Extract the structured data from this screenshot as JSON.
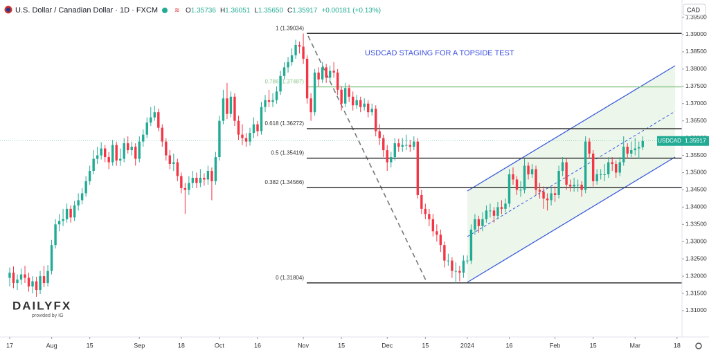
{
  "header": {
    "title": "U.S. Dollar / Canadian Dollar · 1D · FXCM",
    "ohlc": [
      {
        "key": "O",
        "value": "1.35736"
      },
      {
        "key": "H",
        "value": "1.36051"
      },
      {
        "key": "L",
        "value": "1.35650"
      },
      {
        "key": "C",
        "value": "1.35917"
      }
    ],
    "change": "+0.00181 (+0.13%)",
    "currency": "CAD"
  },
  "logo": {
    "brand": "DAILYFX",
    "sub": "provided by IG"
  },
  "chart_data": {
    "type": "candlestick",
    "up_color": "#22ab94",
    "down_color": "#f23645",
    "candles": [
      [
        1.3195,
        1.3225,
        1.317,
        1.321
      ],
      [
        1.321,
        1.3228,
        1.3165,
        1.318
      ],
      [
        1.318,
        1.3205,
        1.316,
        1.319
      ],
      [
        1.319,
        1.3222,
        1.3175,
        1.3205
      ],
      [
        1.3205,
        1.323,
        1.318,
        1.3195
      ],
      [
        1.3195,
        1.321,
        1.3155,
        1.317
      ],
      [
        1.317,
        1.32,
        1.315,
        1.3185
      ],
      [
        1.3185,
        1.3198,
        1.314,
        1.316
      ],
      [
        1.316,
        1.3215,
        1.3148,
        1.32
      ],
      [
        1.32,
        1.323,
        1.3168,
        1.318
      ],
      [
        1.318,
        1.3232,
        1.317,
        1.3215
      ],
      [
        1.3215,
        1.3305,
        1.3205,
        1.329
      ],
      [
        1.329,
        1.3365,
        1.328,
        1.335
      ],
      [
        1.335,
        1.338,
        1.333,
        1.336
      ],
      [
        1.336,
        1.3395,
        1.3345,
        1.3365
      ],
      [
        1.3365,
        1.341,
        1.3355,
        1.3395
      ],
      [
        1.3395,
        1.3405,
        1.3355,
        1.337
      ],
      [
        1.337,
        1.3418,
        1.336,
        1.3405
      ],
      [
        1.3405,
        1.344,
        1.339,
        1.342
      ],
      [
        1.342,
        1.3455,
        1.3408,
        1.344
      ],
      [
        1.344,
        1.349,
        1.343,
        1.3475
      ],
      [
        1.3475,
        1.352,
        1.3465,
        1.3505
      ],
      [
        1.3505,
        1.3565,
        1.3495,
        1.354
      ],
      [
        1.354,
        1.3575,
        1.3525,
        1.355
      ],
      [
        1.355,
        1.3588,
        1.3538,
        1.357
      ],
      [
        1.357,
        1.358,
        1.353,
        1.3545
      ],
      [
        1.3545,
        1.356,
        1.351,
        1.353
      ],
      [
        1.353,
        1.3595,
        1.352,
        1.358
      ],
      [
        1.358,
        1.359,
        1.352,
        1.3535
      ],
      [
        1.3535,
        1.357,
        1.352,
        1.354
      ],
      [
        1.354,
        1.36,
        1.353,
        1.3585
      ],
      [
        1.3585,
        1.3605,
        1.3555,
        1.3565
      ],
      [
        1.3565,
        1.359,
        1.355,
        1.3575
      ],
      [
        1.3575,
        1.3585,
        1.352,
        1.354
      ],
      [
        1.354,
        1.3605,
        1.353,
        1.359
      ],
      [
        1.359,
        1.3625,
        1.3575,
        1.361
      ],
      [
        1.361,
        1.366,
        1.36,
        1.3645
      ],
      [
        1.3645,
        1.369,
        1.3635,
        1.366
      ],
      [
        1.366,
        1.3694,
        1.365,
        1.3675
      ],
      [
        1.3675,
        1.3685,
        1.362,
        1.363
      ],
      [
        1.363,
        1.364,
        1.3575,
        1.359
      ],
      [
        1.359,
        1.36,
        1.3535,
        1.355
      ],
      [
        1.355,
        1.3565,
        1.351,
        1.3525
      ],
      [
        1.3525,
        1.3555,
        1.3505,
        1.353
      ],
      [
        1.353,
        1.354,
        1.3475,
        1.349
      ],
      [
        1.349,
        1.35,
        1.344,
        1.3455
      ],
      [
        1.3455,
        1.347,
        1.338,
        1.345
      ],
      [
        1.345,
        1.349,
        1.3435,
        1.347
      ],
      [
        1.347,
        1.3505,
        1.3455,
        1.3485
      ],
      [
        1.3485,
        1.35,
        1.3455,
        1.347
      ],
      [
        1.347,
        1.351,
        1.3458,
        1.3485
      ],
      [
        1.3485,
        1.3498,
        1.3462,
        1.348
      ],
      [
        1.348,
        1.352,
        1.3465,
        1.3505
      ],
      [
        1.3505,
        1.3515,
        1.342,
        1.3475
      ],
      [
        1.3475,
        1.356,
        1.3465,
        1.3545
      ],
      [
        1.3545,
        1.3665,
        1.3535,
        1.365
      ],
      [
        1.365,
        1.374,
        1.364,
        1.3715
      ],
      [
        1.3715,
        1.376,
        1.3655,
        1.367
      ],
      [
        1.367,
        1.3735,
        1.366,
        1.372
      ],
      [
        1.372,
        1.373,
        1.3635,
        1.365
      ],
      [
        1.365,
        1.3665,
        1.3595,
        1.361
      ],
      [
        1.361,
        1.364,
        1.358,
        1.36
      ],
      [
        1.36,
        1.3615,
        1.3575,
        1.359
      ],
      [
        1.359,
        1.363,
        1.3578,
        1.3615
      ],
      [
        1.3615,
        1.366,
        1.36,
        1.364
      ],
      [
        1.364,
        1.365,
        1.3605,
        1.362
      ],
      [
        1.362,
        1.3705,
        1.361,
        1.369
      ],
      [
        1.369,
        1.3725,
        1.3675,
        1.371
      ],
      [
        1.371,
        1.374,
        1.369,
        1.3705
      ],
      [
        1.3705,
        1.373,
        1.369,
        1.371
      ],
      [
        1.371,
        1.375,
        1.37,
        1.3735
      ],
      [
        1.3735,
        1.3795,
        1.3725,
        1.378
      ],
      [
        1.378,
        1.382,
        1.377,
        1.3805
      ],
      [
        1.3805,
        1.3835,
        1.379,
        1.382
      ],
      [
        1.382,
        1.386,
        1.381,
        1.384
      ],
      [
        1.384,
        1.3885,
        1.383,
        1.387
      ],
      [
        1.387,
        1.388,
        1.3845,
        1.3865
      ],
      [
        1.3865,
        1.3903,
        1.3815,
        1.383
      ],
      [
        1.383,
        1.384,
        1.37,
        1.3715
      ],
      [
        1.3715,
        1.373,
        1.365,
        1.3675
      ],
      [
        1.3675,
        1.38,
        1.3665,
        1.379
      ],
      [
        1.379,
        1.3805,
        1.375,
        1.377
      ],
      [
        1.377,
        1.382,
        1.376,
        1.3805
      ],
      [
        1.3805,
        1.3815,
        1.376,
        1.3775
      ],
      [
        1.3775,
        1.381,
        1.3765,
        1.3795
      ],
      [
        1.3795,
        1.382,
        1.3775,
        1.379
      ],
      [
        1.379,
        1.38,
        1.3725,
        1.374
      ],
      [
        1.374,
        1.375,
        1.368,
        1.37
      ],
      [
        1.37,
        1.376,
        1.369,
        1.3745
      ],
      [
        1.3745,
        1.3755,
        1.3705,
        1.372
      ],
      [
        1.372,
        1.3735,
        1.368,
        1.3695
      ],
      [
        1.3695,
        1.3725,
        1.3685,
        1.371
      ],
      [
        1.371,
        1.372,
        1.3675,
        1.369
      ],
      [
        1.369,
        1.3715,
        1.368,
        1.37
      ],
      [
        1.37,
        1.371,
        1.366,
        1.3675
      ],
      [
        1.3675,
        1.37,
        1.3665,
        1.3685
      ],
      [
        1.3685,
        1.3695,
        1.3605,
        1.362
      ],
      [
        1.362,
        1.364,
        1.358,
        1.36
      ],
      [
        1.36,
        1.361,
        1.3545,
        1.3565
      ],
      [
        1.3565,
        1.358,
        1.3505,
        1.353
      ],
      [
        1.353,
        1.356,
        1.3515,
        1.3545
      ],
      [
        1.3545,
        1.36,
        1.3535,
        1.3585
      ],
      [
        1.3585,
        1.3598,
        1.356,
        1.3575
      ],
      [
        1.3575,
        1.36,
        1.356,
        1.358
      ],
      [
        1.358,
        1.361,
        1.3565,
        1.358
      ],
      [
        1.358,
        1.3595,
        1.356,
        1.3575
      ],
      [
        1.3575,
        1.3605,
        1.3565,
        1.359
      ],
      [
        1.359,
        1.36,
        1.3425,
        1.3435
      ],
      [
        1.3435,
        1.345,
        1.338,
        1.3395
      ],
      [
        1.3395,
        1.341,
        1.3365,
        1.338
      ],
      [
        1.338,
        1.3395,
        1.3345,
        1.3365
      ],
      [
        1.3365,
        1.338,
        1.3315,
        1.333
      ],
      [
        1.333,
        1.335,
        1.33,
        1.332
      ],
      [
        1.332,
        1.3335,
        1.327,
        1.329
      ],
      [
        1.329,
        1.33,
        1.3225,
        1.3245
      ],
      [
        1.3245,
        1.3265,
        1.323,
        1.3245
      ],
      [
        1.3245,
        1.3255,
        1.3195,
        1.3215
      ],
      [
        1.3215,
        1.324,
        1.318,
        1.3215
      ],
      [
        1.3215,
        1.323,
        1.3185,
        1.321
      ],
      [
        1.321,
        1.326,
        1.3195,
        1.3245
      ],
      [
        1.3245,
        1.326,
        1.3235,
        1.3245
      ],
      [
        1.3245,
        1.335,
        1.3235,
        1.3335
      ],
      [
        1.3335,
        1.338,
        1.332,
        1.3365
      ],
      [
        1.3365,
        1.3375,
        1.3325,
        1.3345
      ],
      [
        1.3345,
        1.3385,
        1.333,
        1.3365
      ],
      [
        1.3365,
        1.3405,
        1.3355,
        1.339
      ],
      [
        1.339,
        1.341,
        1.337,
        1.339
      ],
      [
        1.339,
        1.34,
        1.3355,
        1.3375
      ],
      [
        1.3375,
        1.3415,
        1.3365,
        1.34
      ],
      [
        1.34,
        1.342,
        1.338,
        1.3395
      ],
      [
        1.3395,
        1.3425,
        1.3385,
        1.341
      ],
      [
        1.341,
        1.351,
        1.34,
        1.3495
      ],
      [
        1.3495,
        1.3515,
        1.3465,
        1.348
      ],
      [
        1.348,
        1.349,
        1.3435,
        1.345
      ],
      [
        1.345,
        1.3475,
        1.343,
        1.345
      ],
      [
        1.345,
        1.354,
        1.344,
        1.352
      ],
      [
        1.352,
        1.353,
        1.348,
        1.3495
      ],
      [
        1.3495,
        1.3525,
        1.3485,
        1.351
      ],
      [
        1.351,
        1.352,
        1.3435,
        1.345
      ],
      [
        1.345,
        1.347,
        1.3425,
        1.3445
      ],
      [
        1.3445,
        1.346,
        1.3395,
        1.3425
      ],
      [
        1.3425,
        1.344,
        1.339,
        1.342
      ],
      [
        1.342,
        1.3455,
        1.3405,
        1.344
      ],
      [
        1.344,
        1.346,
        1.3415,
        1.3435
      ],
      [
        1.3435,
        1.352,
        1.3425,
        1.3505
      ],
      [
        1.3505,
        1.3545,
        1.349,
        1.353
      ],
      [
        1.353,
        1.354,
        1.345,
        1.3465
      ],
      [
        1.3465,
        1.348,
        1.3445,
        1.346
      ],
      [
        1.346,
        1.3485,
        1.3445,
        1.3465
      ],
      [
        1.3465,
        1.348,
        1.3445,
        1.3465
      ],
      [
        1.3465,
        1.3475,
        1.343,
        1.345
      ],
      [
        1.345,
        1.3605,
        1.344,
        1.359
      ],
      [
        1.359,
        1.36,
        1.354,
        1.3555
      ],
      [
        1.3555,
        1.3565,
        1.346,
        1.3475
      ],
      [
        1.3475,
        1.351,
        1.3465,
        1.3495
      ],
      [
        1.3495,
        1.351,
        1.348,
        1.3495
      ],
      [
        1.3495,
        1.3525,
        1.3475,
        1.3495
      ],
      [
        1.3495,
        1.3545,
        1.3485,
        1.353
      ],
      [
        1.353,
        1.3545,
        1.3505,
        1.3525
      ],
      [
        1.3525,
        1.3535,
        1.3485,
        1.35
      ],
      [
        1.35,
        1.3545,
        1.349,
        1.353
      ],
      [
        1.353,
        1.3605,
        1.352,
        1.3575
      ],
      [
        1.3575,
        1.3585,
        1.354,
        1.3555
      ],
      [
        1.3555,
        1.359,
        1.3545,
        1.3565
      ],
      [
        1.3565,
        1.36,
        1.355,
        1.357
      ],
      [
        1.357,
        1.359,
        1.354,
        1.3574
      ],
      [
        1.35736,
        1.36051,
        1.3565,
        1.35917
      ]
    ],
    "xlim": [
      -2.54,
      176.3
    ],
    "xticks": [
      {
        "value": 0,
        "label": "17"
      },
      {
        "value": 11,
        "label": "Aug"
      },
      {
        "value": 21,
        "label": "15"
      },
      {
        "value": 34,
        "label": "Sep"
      },
      {
        "value": 45,
        "label": "18"
      },
      {
        "value": 55,
        "label": "Oct"
      },
      {
        "value": 65,
        "label": "16"
      },
      {
        "value": 77,
        "label": "Nov"
      },
      {
        "value": 87,
        "label": "15"
      },
      {
        "value": 99,
        "label": "Dec"
      },
      {
        "value": 109,
        "label": "15"
      },
      {
        "value": 120,
        "label": "2024"
      },
      {
        "value": 131,
        "label": "16"
      },
      {
        "value": 143,
        "label": "Feb"
      },
      {
        "value": 153,
        "label": "15"
      },
      {
        "value": 164,
        "label": "Mar"
      },
      {
        "value": 175,
        "label": "18"
      }
    ],
    "ylim": [
      1.30278,
      1.39561
    ],
    "yticks": [
      {
        "value": 1.31,
        "label": "1.31000"
      },
      {
        "value": 1.315,
        "label": "1.31500"
      },
      {
        "value": 1.32,
        "label": "1.32000"
      },
      {
        "value": 1.325,
        "label": "1.32500"
      },
      {
        "value": 1.33,
        "label": "1.33000"
      },
      {
        "value": 1.335,
        "label": "1.33500"
      },
      {
        "value": 1.34,
        "label": "1.34000"
      },
      {
        "value": 1.345,
        "label": "1.34500"
      },
      {
        "value": 1.35,
        "label": "1.35000"
      },
      {
        "value": 1.355,
        "label": "1.35500"
      },
      {
        "value": 1.36,
        "label": "1.36000"
      },
      {
        "value": 1.365,
        "label": "1.36500"
      },
      {
        "value": 1.37,
        "label": "1.37000"
      },
      {
        "value": 1.375,
        "label": "1.37500"
      },
      {
        "value": 1.38,
        "label": "1.38000"
      },
      {
        "value": 1.385,
        "label": "1.38500"
      },
      {
        "value": 1.39,
        "label": "1.39000"
      },
      {
        "value": 1.395,
        "label": "1.39500"
      }
    ],
    "fib_levels": [
      {
        "value": 1.39034,
        "label": "1 (1.39034)",
        "color": "#333333"
      },
      {
        "value": 1.37487,
        "label": "0.786 (1.37487)",
        "color": "#8cc78c"
      },
      {
        "value": 1.36272,
        "label": "0.618 (1.36272)",
        "color": "#333333"
      },
      {
        "value": 1.35419,
        "label": "0.5 (1.35419)",
        "color": "#333333"
      },
      {
        "value": 1.34566,
        "label": "0.382 (1.34566)",
        "color": "#333333"
      },
      {
        "value": 1.31804,
        "label": "0 (1.31804)",
        "color": "#333333"
      }
    ],
    "annotation": "USDCAD STAGING FOR A TOPSIDE TEST",
    "symbol": "USDCAD"
  }
}
